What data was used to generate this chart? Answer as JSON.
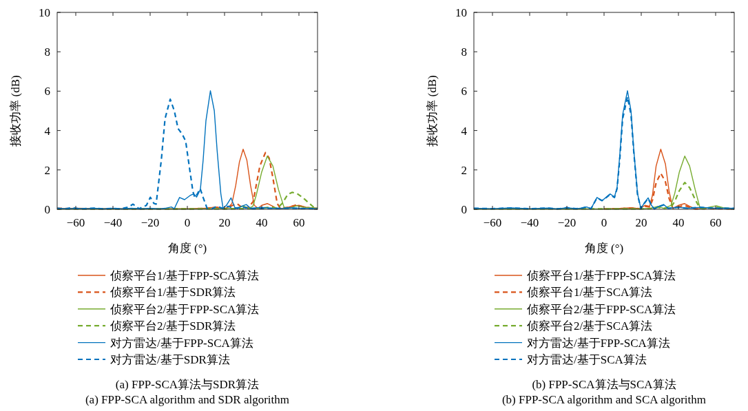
{
  "chart_data": [
    {
      "type": "line",
      "xlabel": "角度 (°)",
      "ylabel": "接收功率 (dB)",
      "xlim": [
        -70,
        70
      ],
      "ylim": [
        0,
        10
      ],
      "xticks": [
        -60,
        -40,
        -20,
        0,
        20,
        40,
        60
      ],
      "yticks": [
        0,
        2,
        4,
        6,
        8,
        10
      ],
      "legend": "bottom",
      "marker": "none",
      "annotations": [
        "(a) FPP-SCA算法与SDR算法",
        "(a) FPP-SCA algorithm and SDR algorithm"
      ],
      "series": [
        {
          "name": "侦察平台1/基于FPP-SCA算法",
          "color": "#d95319",
          "line_style": "solid",
          "x": [
            -70,
            -60,
            -40,
            -20,
            0,
            10,
            15,
            18,
            20,
            22,
            24,
            26,
            28,
            30,
            32,
            34,
            36,
            38,
            40,
            43,
            46,
            48,
            52,
            56,
            60,
            64,
            70
          ],
          "values": [
            0.03,
            0.05,
            0.03,
            0.03,
            0.03,
            0.05,
            0.12,
            0.05,
            0.02,
            0.1,
            0.3,
            1.2,
            2.4,
            3.05,
            2.5,
            1.2,
            0.2,
            0.05,
            0.2,
            0.29,
            0.15,
            0.03,
            0.05,
            0.15,
            0.2,
            0.1,
            0.05
          ]
        },
        {
          "name": "侦察平台1/基于SDR算法",
          "color": "#d95319",
          "line_style": "dashed",
          "x": [
            -70,
            -60,
            -40,
            -20,
            0,
            10,
            16,
            20,
            23,
            26.7,
            30,
            33,
            35.4,
            37,
            39,
            42,
            44,
            46,
            48.3,
            50,
            54,
            58.7,
            63,
            70
          ],
          "values": [
            0.05,
            0.03,
            0.02,
            0.02,
            0.02,
            0.05,
            0.1,
            0.02,
            0.15,
            0.29,
            0.05,
            0.1,
            0.4,
            1.2,
            2.2,
            2.88,
            2.6,
            1.6,
            0.3,
            0.05,
            0.1,
            0.22,
            0.1,
            0.03
          ]
        },
        {
          "name": "侦察平台2/基于FPP-SCA算法",
          "color": "#77ac30",
          "line_style": "solid",
          "x": [
            -70,
            -40,
            0,
            20,
            26,
            30.3,
            33,
            35.2,
            37,
            40,
            43,
            46,
            49,
            52,
            55,
            58.7,
            63,
            70
          ],
          "values": [
            0.02,
            0.02,
            0.02,
            0.03,
            0.05,
            0.16,
            0.05,
            0.15,
            0.7,
            1.9,
            2.7,
            2.2,
            1.0,
            0.1,
            0.05,
            0.18,
            0.1,
            0.05
          ]
        },
        {
          "name": "侦察平台2/基于SDR算法",
          "color": "#77ac30",
          "line_style": "dashed",
          "x": [
            -70,
            -40,
            0,
            20,
            30,
            40,
            45,
            48.3,
            51,
            54,
            56.3,
            59,
            62,
            65,
            68.6,
            70
          ],
          "values": [
            0.02,
            0.02,
            0.02,
            0.02,
            0.03,
            0.05,
            0.12,
            0.05,
            0.3,
            0.75,
            0.86,
            0.8,
            0.6,
            0.35,
            0.05,
            0.05
          ]
        },
        {
          "name": "对方雷达/基于FPP-SCA算法",
          "color": "#0072bd",
          "line_style": "solid",
          "x": [
            -70,
            -64,
            -60,
            -55,
            -50,
            -45,
            -40,
            -35,
            -30,
            -25,
            -20,
            -15,
            -12,
            -8.6,
            -7,
            -4.2,
            -1.5,
            1.5,
            3.4,
            5,
            7,
            8.5,
            10,
            12.4,
            14.5,
            16,
            18,
            19.2,
            21,
            23.5,
            25.5,
            27,
            29,
            31.7,
            34,
            40,
            45,
            50,
            55,
            60,
            70
          ],
          "values": [
            0.05,
            0.02,
            0.05,
            0.02,
            0.05,
            0.02,
            0.05,
            0.02,
            0.05,
            0.02,
            0.05,
            0.02,
            0.05,
            0.12,
            0.03,
            0.6,
            0.49,
            0.7,
            0.78,
            0.62,
            1.0,
            2.5,
            4.5,
            6.02,
            5.0,
            3.0,
            0.8,
            0.05,
            0.2,
            0.58,
            0.1,
            0.03,
            0.15,
            0.24,
            0.05,
            0.1,
            0.05,
            0.03,
            0.08,
            0.05,
            0.03
          ]
        },
        {
          "name": "对方雷达/基于SDR算法",
          "color": "#0072bd",
          "line_style": "dashed",
          "x": [
            -70,
            -66,
            -62,
            -58,
            -50,
            -45,
            -40,
            -36,
            -32,
            -29.2,
            -26,
            -22,
            -19.9,
            -18,
            -16.8,
            -14,
            -12,
            -9.2,
            -7,
            -5,
            -2.7,
            -0.9,
            1,
            3,
            4,
            5.5,
            6.9,
            8.5,
            10.6,
            13,
            16,
            19,
            22,
            25,
            30,
            35,
            45,
            55,
            70
          ],
          "values": [
            0.05,
            0.02,
            0.08,
            0.02,
            0.06,
            0.02,
            0.05,
            0.02,
            0.1,
            0.26,
            0.03,
            0.2,
            0.61,
            0.3,
            0.26,
            2.5,
            4.6,
            5.59,
            5.0,
            4.1,
            3.81,
            3.46,
            2.2,
            0.9,
            0.6,
            0.8,
            1.05,
            0.6,
            0.05,
            0.02,
            0.15,
            0.05,
            0.15,
            0.05,
            0.1,
            0.03,
            0.05,
            0.05,
            0.03
          ]
        }
      ]
    },
    {
      "type": "line",
      "xlabel": "角度 (°)",
      "ylabel": "接收功率 (dB)",
      "xlim": [
        -70,
        70
      ],
      "ylim": [
        0,
        10
      ],
      "xticks": [
        -60,
        -40,
        -20,
        0,
        20,
        40,
        60
      ],
      "yticks": [
        0,
        2,
        4,
        6,
        8,
        10
      ],
      "legend": "bottom",
      "marker": "none",
      "annotations": [
        "(b) FPP-SCA算法与SCA算法",
        "(b) FPP-SCA algorithm and SCA algorithm"
      ],
      "series": [
        {
          "name": "侦察平台1/基于FPP-SCA算法",
          "color": "#d95319",
          "line_style": "solid",
          "x": [
            0,
            10,
            15,
            19,
            22,
            24.5,
            26,
            28,
            30.5,
            33,
            35,
            37,
            40,
            43.2,
            46,
            49,
            55
          ],
          "values": [
            0.02,
            0.05,
            0.08,
            0.03,
            0.2,
            0.15,
            0.7,
            2.2,
            3.05,
            2.3,
            0.9,
            0.05,
            0.2,
            0.29,
            0.15,
            0.02,
            0.05
          ]
        },
        {
          "name": "侦察平台1/基于SCA算法",
          "color": "#d95319",
          "line_style": "dashed",
          "x": [
            0,
            10,
            15,
            19,
            22,
            24.5,
            26,
            28,
            30.5,
            33,
            35,
            37,
            40,
            43.2,
            46,
            49,
            55,
            60,
            70
          ],
          "values": [
            0.02,
            0.04,
            0.06,
            0.03,
            0.15,
            0.12,
            0.45,
            1.35,
            1.83,
            1.4,
            0.55,
            0.05,
            0.12,
            0.2,
            0.1,
            0.02,
            0.04,
            0.03,
            0.02
          ]
        },
        {
          "name": "侦察平台2/基于FPP-SCA算法",
          "color": "#77ac30",
          "line_style": "solid",
          "x": [
            -70,
            0,
            20,
            25,
            29,
            32,
            36,
            38,
            40.5,
            43.4,
            46,
            49,
            51.5,
            54,
            57,
            60.4,
            64,
            70
          ],
          "values": [
            0.02,
            0.02,
            0.02,
            0.05,
            0.15,
            0.05,
            0.2,
            0.8,
            1.9,
            2.7,
            2.2,
            1.0,
            0.1,
            0.03,
            0.12,
            0.18,
            0.08,
            0.03
          ]
        },
        {
          "name": "侦察平台2/基于SCA算法",
          "color": "#77ac30",
          "line_style": "dashed",
          "x": [
            -70,
            0,
            20,
            25,
            29,
            32,
            36,
            38,
            40.5,
            43.4,
            46,
            49,
            51.5,
            54,
            57,
            60.4,
            64,
            70
          ],
          "values": [
            0.02,
            0.02,
            0.02,
            0.04,
            0.1,
            0.04,
            0.1,
            0.4,
            0.95,
            1.36,
            1.1,
            0.5,
            0.05,
            0.02,
            0.06,
            0.1,
            0.05,
            0.02
          ]
        },
        {
          "name": "对方雷达/基于FPP-SCA算法",
          "color": "#0072bd",
          "line_style": "solid",
          "x": [
            -70,
            -60,
            -50,
            -40,
            -30,
            -25,
            -20,
            -15,
            -12,
            -9.3,
            -7,
            -3.8,
            -1.1,
            1,
            3.2,
            5.6,
            7,
            8.5,
            10,
            12.6,
            14.5,
            16,
            18,
            19.8,
            21.5,
            23.7,
            25.5,
            27,
            29.5,
            32,
            34.5,
            40,
            45,
            52,
            60,
            70
          ],
          "values": [
            0.05,
            0.03,
            0.07,
            0.03,
            0.06,
            0.02,
            0.08,
            0.03,
            0.06,
            0.12,
            0.03,
            0.6,
            0.44,
            0.6,
            0.78,
            0.63,
            1.1,
            2.8,
            4.8,
            6.02,
            5.0,
            3.0,
            0.8,
            0.03,
            0.3,
            0.58,
            0.2,
            0.02,
            0.15,
            0.24,
            0.05,
            0.1,
            0.05,
            0.1,
            0.05,
            0.05
          ]
        },
        {
          "name": "对方雷达/基于SCA算法",
          "color": "#0072bd",
          "line_style": "dashed",
          "x": [
            -70,
            -60,
            -50,
            -40,
            -30,
            -25,
            -20,
            -15,
            -12,
            -9.3,
            -7,
            -3.8,
            -1.1,
            1,
            3.2,
            5.6,
            7,
            8.5,
            10,
            12.6,
            14.5,
            16,
            18,
            19.8,
            21.5,
            23.7,
            25.5,
            27,
            29.5,
            32,
            34.5,
            40,
            45,
            52,
            60,
            70
          ],
          "values": [
            0.05,
            0.03,
            0.07,
            0.03,
            0.06,
            0.02,
            0.08,
            0.03,
            0.06,
            0.12,
            0.03,
            0.58,
            0.44,
            0.58,
            0.75,
            0.6,
            1.05,
            2.6,
            4.6,
            5.71,
            4.8,
            2.9,
            0.75,
            0.03,
            0.28,
            0.55,
            0.2,
            0.02,
            0.14,
            0.22,
            0.05,
            0.1,
            0.05,
            0.1,
            0.05,
            0.05
          ]
        }
      ]
    }
  ]
}
